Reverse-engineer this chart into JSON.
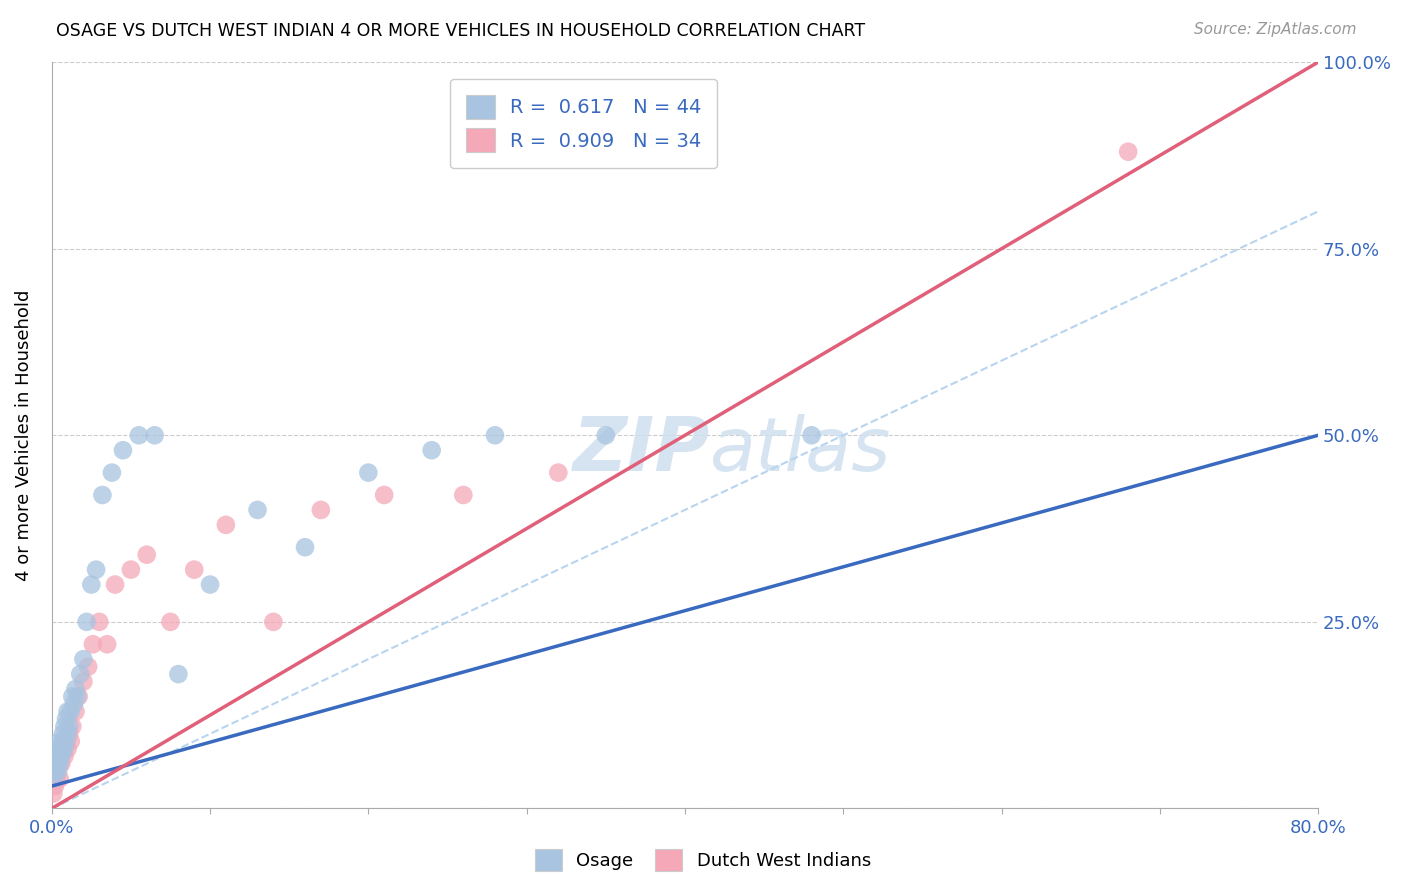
{
  "title": "OSAGE VS DUTCH WEST INDIAN 4 OR MORE VEHICLES IN HOUSEHOLD CORRELATION CHART",
  "source": "Source: ZipAtlas.com",
  "ylabel": "4 or more Vehicles in Household",
  "xlim": [
    0.0,
    0.8
  ],
  "ylim": [
    0.0,
    1.0
  ],
  "xtick_positions": [
    0.0,
    0.1,
    0.2,
    0.3,
    0.4,
    0.5,
    0.6,
    0.7,
    0.8
  ],
  "xticklabels": [
    "0.0%",
    "",
    "",
    "",
    "",
    "",
    "",
    "",
    "80.0%"
  ],
  "ytick_positions": [
    0.0,
    0.25,
    0.5,
    0.75,
    1.0
  ],
  "yticklabels_right": [
    "",
    "25.0%",
    "50.0%",
    "75.0%",
    "100.0%"
  ],
  "legend_osage_R": "0.617",
  "legend_osage_N": "44",
  "legend_dwi_R": "0.909",
  "legend_dwi_N": "34",
  "osage_color": "#a8c4e0",
  "dwi_color": "#f4a8b8",
  "osage_line_color": "#3a6abf",
  "dwi_line_color": "#e0607a",
  "diagonal_color": "#b8d4ee",
  "watermark_color": "#cfe0f0",
  "osage_x": [
    0.001,
    0.002,
    0.003,
    0.003,
    0.004,
    0.004,
    0.005,
    0.005,
    0.005,
    0.006,
    0.006,
    0.007,
    0.007,
    0.008,
    0.008,
    0.009,
    0.009,
    0.01,
    0.01,
    0.011,
    0.012,
    0.013,
    0.014,
    0.015,
    0.016,
    0.018,
    0.02,
    0.022,
    0.025,
    0.028,
    0.032,
    0.038,
    0.045,
    0.055,
    0.065,
    0.08,
    0.1,
    0.13,
    0.16,
    0.2,
    0.24,
    0.28,
    0.35,
    0.48
  ],
  "osage_y": [
    0.04,
    0.05,
    0.06,
    0.07,
    0.05,
    0.08,
    0.06,
    0.07,
    0.09,
    0.07,
    0.08,
    0.09,
    0.1,
    0.08,
    0.11,
    0.09,
    0.12,
    0.1,
    0.13,
    0.11,
    0.13,
    0.15,
    0.14,
    0.16,
    0.15,
    0.18,
    0.2,
    0.25,
    0.3,
    0.32,
    0.42,
    0.45,
    0.48,
    0.5,
    0.5,
    0.18,
    0.3,
    0.4,
    0.35,
    0.45,
    0.48,
    0.5,
    0.5,
    0.5
  ],
  "dwi_x": [
    0.001,
    0.002,
    0.003,
    0.003,
    0.004,
    0.005,
    0.005,
    0.006,
    0.007,
    0.008,
    0.009,
    0.01,
    0.011,
    0.012,
    0.013,
    0.015,
    0.017,
    0.02,
    0.023,
    0.026,
    0.03,
    0.035,
    0.04,
    0.05,
    0.06,
    0.075,
    0.09,
    0.11,
    0.14,
    0.17,
    0.21,
    0.26,
    0.32,
    0.68
  ],
  "dwi_y": [
    0.02,
    0.03,
    0.04,
    0.05,
    0.06,
    0.04,
    0.07,
    0.06,
    0.08,
    0.07,
    0.09,
    0.08,
    0.1,
    0.09,
    0.11,
    0.13,
    0.15,
    0.17,
    0.19,
    0.22,
    0.25,
    0.22,
    0.3,
    0.32,
    0.34,
    0.25,
    0.32,
    0.38,
    0.25,
    0.4,
    0.42,
    0.42,
    0.45,
    0.88
  ],
  "osage_line_x0": 0.0,
  "osage_line_y0": 0.03,
  "osage_line_x1": 0.8,
  "osage_line_y1": 0.5,
  "dwi_line_x0": 0.0,
  "dwi_line_y0": 0.0,
  "dwi_line_x1": 0.8,
  "dwi_line_y1": 1.0
}
